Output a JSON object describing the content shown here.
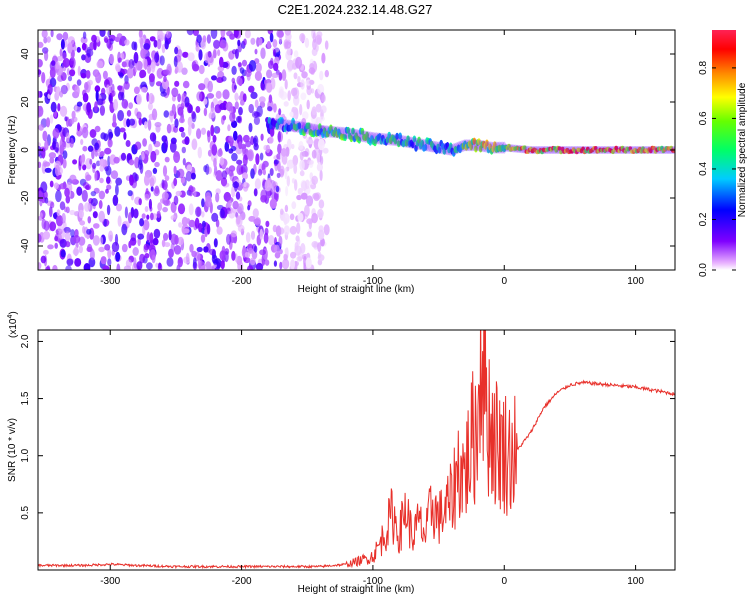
{
  "title": "C2E1.2024.232.14.48.G27",
  "chart_data": [
    {
      "type": "heatmap",
      "xlabel": "Height of straight line (km)",
      "ylabel": "Frequency (Hz)",
      "xlim": [
        -355,
        130
      ],
      "ylim": [
        -50,
        50
      ],
      "x_ticks": [
        -300,
        -200,
        -100,
        0,
        100
      ],
      "y_ticks": [
        -40,
        -20,
        0,
        20,
        40
      ],
      "colorbar": {
        "label": "Normalized spectral amplitude",
        "range": [
          0.0,
          0.95
        ],
        "ticks": [
          "0.0",
          "0.2",
          "0.4",
          "0.6",
          "0.8"
        ],
        "tick_values": [
          0.0,
          0.2,
          0.4,
          0.6,
          0.8
        ],
        "colors": [
          "#ffffff",
          "#cc66ff",
          "#7f00ff",
          "#0000ff",
          "#00ccff",
          "#00ff66",
          "#66ff00",
          "#ffff00",
          "#ff8800",
          "#ff0000",
          "#ff2244"
        ]
      },
      "ridge": {
        "x": [
          -180,
          -160,
          -140,
          -120,
          -100,
          -80,
          -60,
          -40,
          -30,
          -20,
          -10,
          0,
          20,
          60,
          100,
          130
        ],
        "freq": [
          11,
          10,
          8,
          7,
          5,
          4,
          2,
          0,
          2,
          2,
          1,
          1,
          0,
          0,
          0,
          0
        ],
        "amplitude": [
          0.4,
          0.5,
          0.55,
          0.6,
          0.55,
          0.5,
          0.5,
          0.45,
          0.6,
          0.8,
          0.7,
          0.75,
          0.85,
          0.9,
          0.9,
          0.85
        ]
      },
      "noise_region_x": [
        -355,
        -145
      ]
    },
    {
      "type": "line",
      "xlabel": "Height of straight line (km)",
      "ylabel": "SNR (10 * v/v)",
      "y_scale_label": "(x10",
      "y_scale_exponent": "4",
      "y_scale_suffix": ")",
      "xlim": [
        -355,
        130
      ],
      "ylim": [
        0.0,
        2.1
      ],
      "x_ticks": [
        -300,
        -200,
        -100,
        0,
        100
      ],
      "y_ticks": [
        0.5,
        1.0,
        1.5,
        2.0
      ],
      "y_tick_labels": [
        "0.5",
        "1.0",
        "1.5",
        "2.0"
      ],
      "color": "#e8302a",
      "series": [
        {
          "x": [
            -355,
            -320,
            -300,
            -280,
            -250,
            -220,
            -200,
            -180,
            -160,
            -140,
            -130,
            -120,
            -110,
            -100,
            -95,
            -90,
            -85,
            -80,
            -75,
            -70,
            -65,
            -60,
            -55,
            -50,
            -45,
            -40,
            -35,
            -30,
            -25,
            -20,
            -18,
            -15,
            -12,
            -10,
            -5,
            0,
            5,
            10,
            20,
            30,
            40,
            50,
            60,
            80,
            100,
            120,
            130
          ],
          "y": [
            0.04,
            0.04,
            0.05,
            0.04,
            0.03,
            0.03,
            0.03,
            0.03,
            0.03,
            0.03,
            0.04,
            0.05,
            0.08,
            0.12,
            0.22,
            0.35,
            0.5,
            0.3,
            0.55,
            0.28,
            0.42,
            0.3,
            0.58,
            0.45,
            0.52,
            0.62,
            0.9,
            0.85,
            1.1,
            1.3,
            2.1,
            1.7,
            1.35,
            1.25,
            1.1,
            1.05,
            1.0,
            1.05,
            1.2,
            1.42,
            1.55,
            1.62,
            1.64,
            1.62,
            1.6,
            1.56,
            1.54
          ]
        }
      ]
    }
  ]
}
